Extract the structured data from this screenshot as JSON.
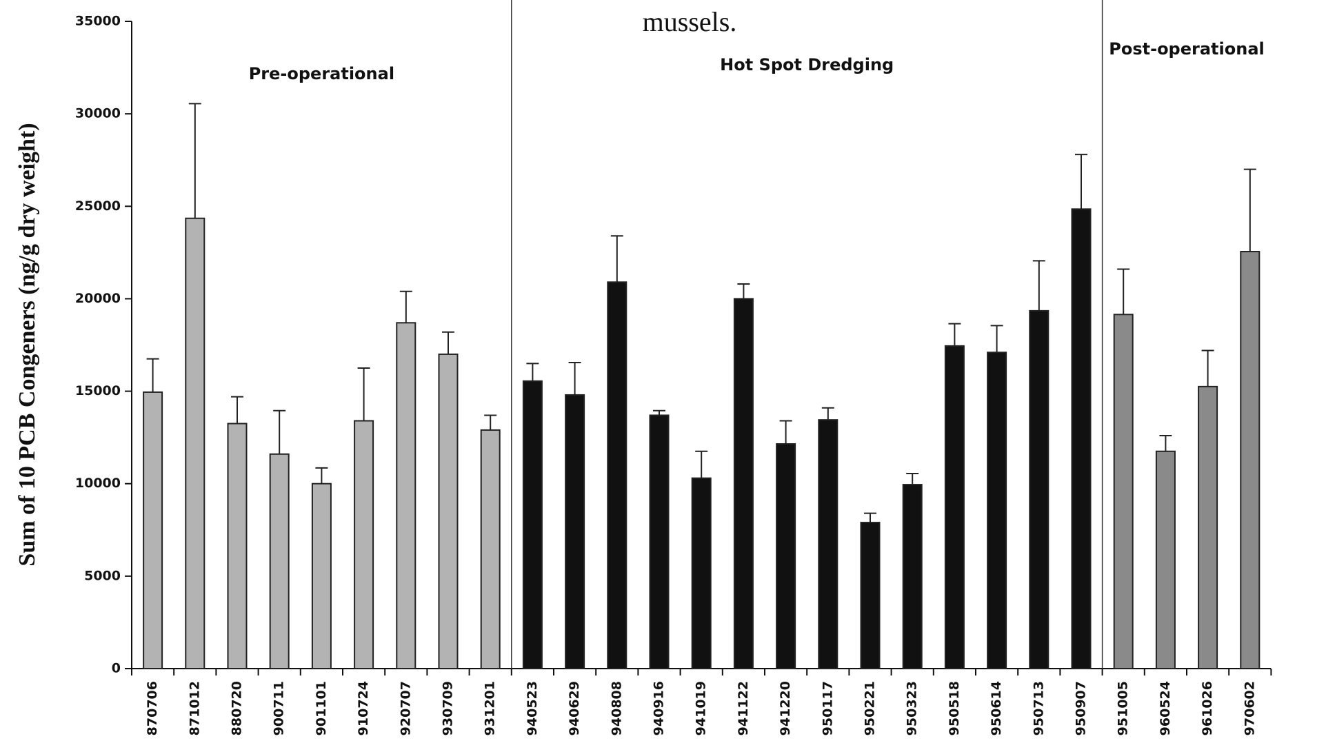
{
  "chart_data": {
    "type": "bar",
    "title": "mussels.",
    "y_label": "Sum of 10 PCB Congeners (ng/g dry weight)",
    "categories": [
      "870706",
      "871012",
      "880720",
      "900711",
      "901101",
      "910724",
      "920707",
      "930709",
      "931201",
      "940523",
      "940629",
      "940808",
      "940916",
      "941019",
      "941122",
      "941220",
      "950117",
      "950221",
      "950323",
      "950518",
      "950614",
      "950713",
      "950907",
      "951005",
      "960524",
      "961026",
      "970602"
    ],
    "series": [
      {
        "name": "Pre-operational",
        "color": "#b3b3b3",
        "values": [
          14950,
          24350,
          13250,
          11600,
          10000,
          13400,
          18700,
          17000,
          12900,
          null,
          null,
          null,
          null,
          null,
          null,
          null,
          null,
          null,
          null,
          null,
          null,
          null,
          null,
          null,
          null,
          null,
          null
        ],
        "errors": [
          1800,
          6200,
          1450,
          2350,
          850,
          2850,
          1700,
          1200,
          800,
          null,
          null,
          null,
          null,
          null,
          null,
          null,
          null,
          null,
          null,
          null,
          null,
          null,
          null,
          null,
          null,
          null,
          null
        ]
      },
      {
        "name": "Hot Spot Dredging",
        "color": "#111111",
        "values": [
          null,
          null,
          null,
          null,
          null,
          null,
          null,
          null,
          null,
          15550,
          14800,
          20900,
          13700,
          10300,
          20000,
          12150,
          13450,
          7900,
          9950,
          17450,
          17100,
          19350,
          24850,
          null,
          null,
          null,
          null
        ],
        "errors": [
          null,
          null,
          null,
          null,
          null,
          null,
          null,
          null,
          null,
          950,
          1750,
          2500,
          250,
          1450,
          800,
          1250,
          650,
          500,
          600,
          1200,
          1450,
          2700,
          2950,
          null,
          null,
          null,
          null
        ]
      },
      {
        "name": "Post-operational",
        "color": "#8a8a8a",
        "values": [
          null,
          null,
          null,
          null,
          null,
          null,
          null,
          null,
          null,
          null,
          null,
          null,
          null,
          null,
          null,
          null,
          null,
          null,
          null,
          null,
          null,
          null,
          null,
          19150,
          11750,
          15250,
          22550
        ],
        "errors": [
          null,
          null,
          null,
          null,
          null,
          null,
          null,
          null,
          null,
          null,
          null,
          null,
          null,
          null,
          null,
          null,
          null,
          null,
          null,
          null,
          null,
          null,
          null,
          2450,
          850,
          1950,
          4450
        ]
      }
    ],
    "ylim": [
      0,
      35000
    ],
    "yticks": [
      0,
      5000,
      10000,
      15000,
      20000,
      25000,
      30000,
      35000
    ],
    "grid": false
  }
}
